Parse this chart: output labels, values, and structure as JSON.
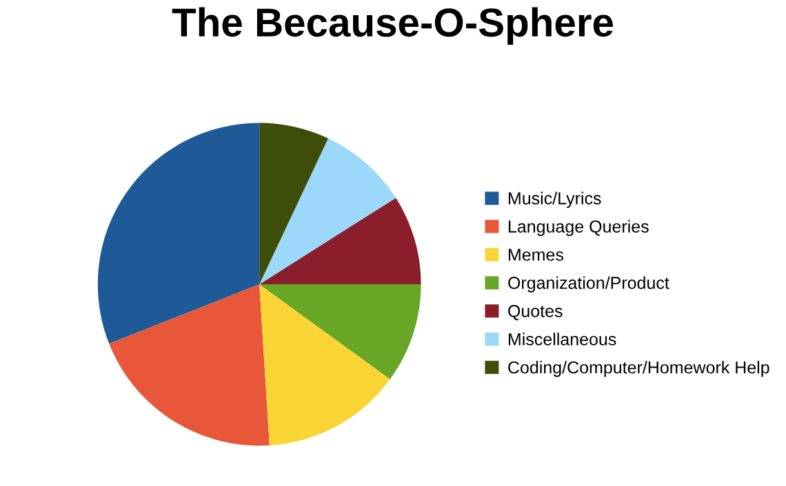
{
  "chart_data": {
    "type": "pie",
    "title": "The Because-O-Sphere",
    "categories": [
      "Music/Lyrics",
      "Language Queries",
      "Memes",
      "Organization/Product",
      "Quotes",
      "Miscellaneous",
      "Coding/Computer/Homework Help"
    ],
    "values": [
      31,
      20,
      14,
      10,
      9,
      9,
      7
    ],
    "colors": [
      "#1f5a98",
      "#e9573a",
      "#f8d534",
      "#68a626",
      "#8a1f2b",
      "#9cd8fa",
      "#3e4d0a"
    ],
    "legend": "right"
  }
}
